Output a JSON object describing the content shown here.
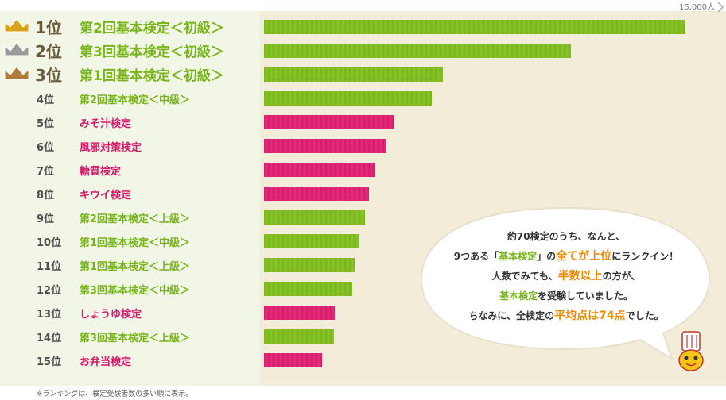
{
  "scale_label": "15,000人",
  "footnote": "※ランキングは、検定受験者数の多い順に表示。",
  "bubble": {
    "line1": "約70検定のうち、なんと、",
    "line2a": "9つある「",
    "line2b": "基本検定",
    "line2c": "」の",
    "line2d": "全てが上位",
    "line2e": "にランクイン！",
    "line3a": "人数でみても、",
    "line3b": "半数以上",
    "line3c": "の方が、",
    "line4a": "基本検定",
    "line4b": "を受験していました。",
    "line5a": "ちなみに、全検定の",
    "line5b": "平均点は74点",
    "line5c": "でした。"
  },
  "colors": {
    "green": "#78b51c",
    "pink": "#d61a6a",
    "orange": "#f08a00"
  },
  "chart_data": {
    "type": "bar",
    "orientation": "horizontal",
    "xlim": [
      0,
      15000
    ],
    "categories": [
      {
        "rank": "1位",
        "name": "第2回基本検定＜初級＞",
        "value": 14800,
        "color": "green",
        "crown": "gold"
      },
      {
        "rank": "2位",
        "name": "第3回基本検定＜初級＞",
        "value": 10800,
        "color": "green",
        "crown": "silver"
      },
      {
        "rank": "3位",
        "name": "第1回基本検定＜初級＞",
        "value": 6300,
        "color": "green",
        "crown": "bronze"
      },
      {
        "rank": "4位",
        "name": "第2回基本検定＜中級＞",
        "value": 5900,
        "color": "green"
      },
      {
        "rank": "5位",
        "name": "みそ汁検定",
        "value": 4600,
        "color": "pink"
      },
      {
        "rank": "6位",
        "name": "風邪対策検定",
        "value": 4300,
        "color": "pink"
      },
      {
        "rank": "7位",
        "name": "糖質検定",
        "value": 3900,
        "color": "pink"
      },
      {
        "rank": "8位",
        "name": "キウイ検定",
        "value": 3700,
        "color": "pink"
      },
      {
        "rank": "9位",
        "name": "第2回基本検定＜上級＞",
        "value": 3550,
        "color": "green"
      },
      {
        "rank": "10位",
        "name": "第1回基本検定＜中級＞",
        "value": 3350,
        "color": "green"
      },
      {
        "rank": "11位",
        "name": "第1回基本検定＜上級＞",
        "value": 3200,
        "color": "green"
      },
      {
        "rank": "12位",
        "name": "第3回基本検定＜中級＞",
        "value": 3100,
        "color": "green"
      },
      {
        "rank": "13位",
        "name": "しょうゆ検定",
        "value": 2500,
        "color": "pink"
      },
      {
        "rank": "14位",
        "name": "第3回基本検定＜上級＞",
        "value": 2450,
        "color": "green"
      },
      {
        "rank": "15位",
        "name": "お弁当検定",
        "value": 2050,
        "color": "pink"
      }
    ]
  }
}
